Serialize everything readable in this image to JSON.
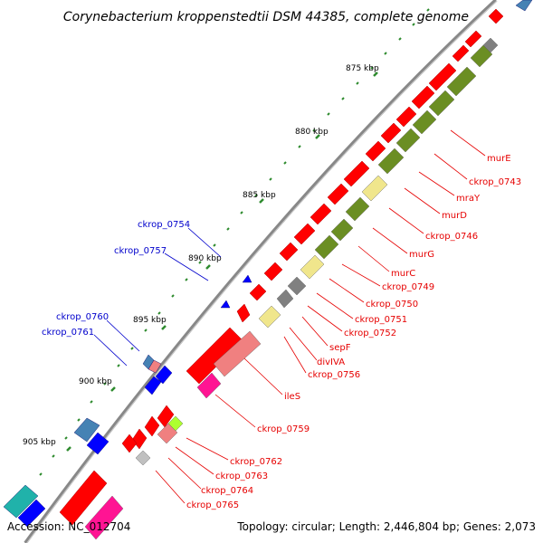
{
  "title": "Corynebacterium kroppenstedtii DSM 44385, complete genome",
  "footer": {
    "accession": "Accession: NC_012704",
    "topology": "Topology: circular; Length: 2,446,804 bp; Genes: 2,073"
  },
  "colors": {
    "cds_forward": "#ff0000",
    "cds_reverse": "#0000ff",
    "backbone": "#888888",
    "tick": "#2e8b2e",
    "gene_label": "#e60000",
    "reverse_label": "#0000cc",
    "cog_green": "#6b8e23",
    "cog_yellow": "#f0e68c",
    "cog_grey": "#808080",
    "cog_salmon": "#f08080",
    "cog_magenta": "#ff1493",
    "cog_cyan": "#20b2aa",
    "cog_steel": "#4682b4"
  },
  "kbp_labels": [
    "875 kbp",
    "880 kbp",
    "885 kbp",
    "890 kbp",
    "895 kbp",
    "900 kbp",
    "905 kbp"
  ],
  "forward_labels": [
    "murE",
    "ckrop_0743",
    "mraY",
    "murD",
    "ckrop_0746",
    "murG",
    "murC",
    "ckrop_0749",
    "ckrop_0750",
    "ckrop_0751",
    "ckrop_0752",
    "sepF",
    "divIVA",
    "ckrop_0756",
    "ileS",
    "ckrop_0759",
    "ckrop_0762",
    "ckrop_0763",
    "ckrop_0764",
    "ckrop_0765"
  ],
  "reverse_labels": [
    "ckrop_0754",
    "ckrop_0757",
    "ckrop_0760",
    "ckrop_0761"
  ]
}
